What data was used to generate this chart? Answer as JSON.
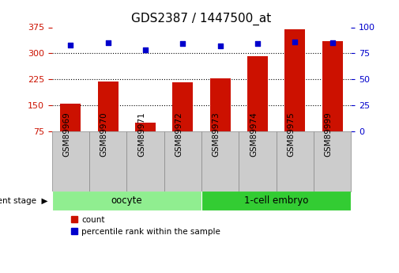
{
  "title": "GDS2387 / 1447500_at",
  "samples": [
    "GSM89969",
    "GSM89970",
    "GSM89971",
    "GSM89972",
    "GSM89973",
    "GSM89974",
    "GSM89975",
    "GSM89999"
  ],
  "counts": [
    155,
    218,
    100,
    215,
    228,
    292,
    370,
    335
  ],
  "percentile_ranks": [
    83,
    85,
    78,
    84,
    82,
    84,
    86,
    85
  ],
  "groups": [
    {
      "label": "oocyte",
      "indices": [
        0,
        1,
        2,
        3
      ],
      "color": "#90ee90"
    },
    {
      "label": "1-cell embryo",
      "indices": [
        4,
        5,
        6,
        7
      ],
      "color": "#33cc33"
    }
  ],
  "bar_color": "#cc1100",
  "dot_color": "#0000cc",
  "ylim_left": [
    75,
    375
  ],
  "ylim_right": [
    0,
    100
  ],
  "yticks_left": [
    75,
    150,
    225,
    300,
    375
  ],
  "yticks_right": [
    0,
    25,
    50,
    75,
    100
  ],
  "grid_values": [
    150,
    225,
    300
  ],
  "background_color": "#ffffff",
  "tick_label_fontsize": 7.5,
  "title_fontsize": 11,
  "group_label_fontsize": 8.5,
  "bar_width": 0.55,
  "ylabel_left_color": "#cc1100",
  "ylabel_right_color": "#0000cc",
  "ytick_fontsize": 8,
  "legend_fontsize": 7.5
}
